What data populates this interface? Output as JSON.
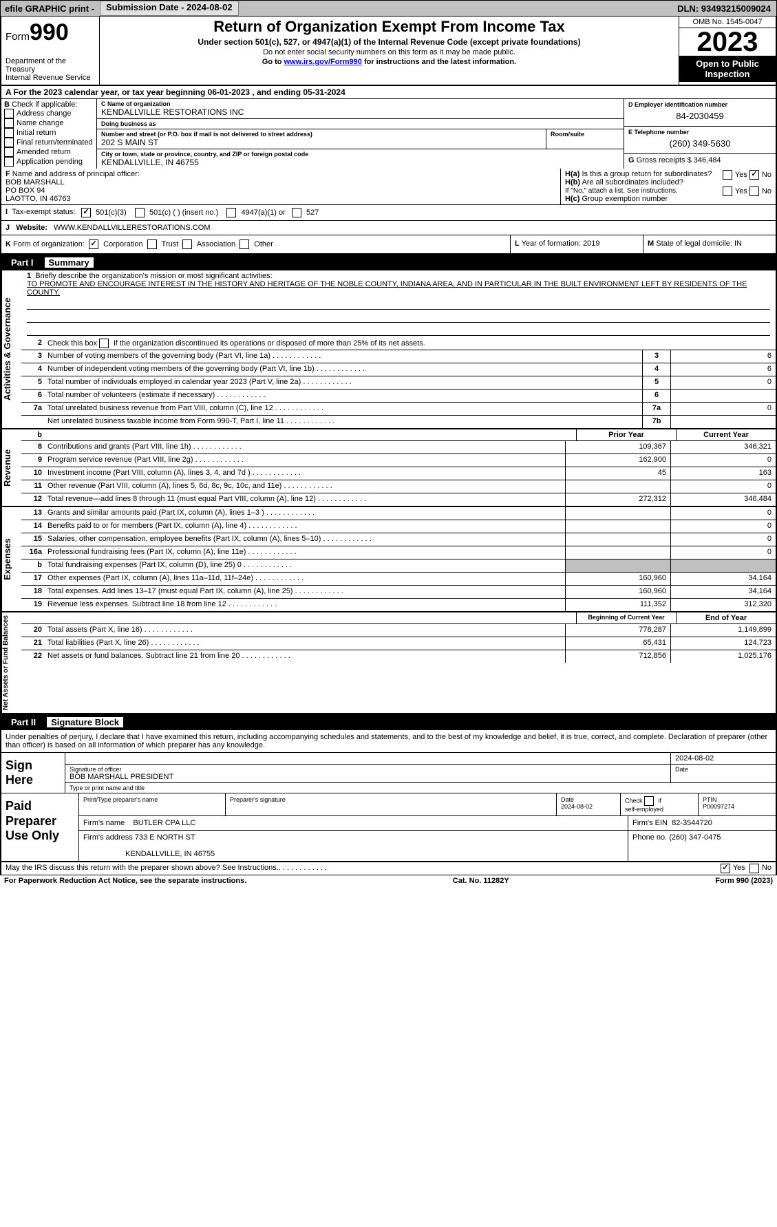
{
  "topbar": {
    "efile": "efile GRAPHIC print -",
    "subdate_label": "Submission Date - ",
    "subdate": "2024-08-02",
    "dln_label": "DLN: ",
    "dln": "93493215009024"
  },
  "header": {
    "form_prefix": "Form",
    "form_no": "990",
    "dept": "Department of the Treasury\nInternal Revenue Service",
    "title": "Return of Organization Exempt From Income Tax",
    "sub": "Under section 501(c), 527, or 4947(a)(1) of the Internal Revenue Code (except private foundations)",
    "notice": "Do not enter social security numbers on this form as it may be made public.",
    "goto_pre": "Go to ",
    "goto_link": "www.irs.gov/Form990",
    "goto_post": " for instructions and the latest information.",
    "omb": "OMB No. 1545-0047",
    "year": "2023",
    "inspect": "Open to Public Inspection"
  },
  "A": {
    "text": "A For the 2023 calendar year, or tax year beginning 06-01-2023    , and ending 05-31-2024"
  },
  "B": {
    "label": "Check if applicable:",
    "items": [
      "Address change",
      "Name change",
      "Initial return",
      "Final return/terminated",
      "Amended return",
      "Application pending"
    ]
  },
  "C": {
    "name_label": "Name of organization",
    "name": "KENDALLVILLE RESTORATIONS INC",
    "dba_label": "Doing business as",
    "dba": "",
    "street_label": "Number and street (or P.O. box if mail is not delivered to street address)",
    "street": "202 S MAIN ST",
    "room_label": "Room/suite",
    "room": "",
    "city_label": "City or town, state or province, country, and ZIP or foreign postal code",
    "city": "KENDALLVILLE, IN  46755"
  },
  "D": {
    "label": "Employer identification number",
    "val": "84-2030459"
  },
  "E": {
    "label": "Telephone number",
    "val": "(260) 349-5630"
  },
  "G": {
    "label": "Gross receipts $",
    "val": "346,484"
  },
  "F": {
    "label": "Name and address of principal officer:",
    "name": "BOB MARSHALL",
    "po": "PO BOX 94",
    "city": "LAOTTO, IN  46763"
  },
  "H": {
    "a": "Is this a group return for subordinates?",
    "a_yes": "Yes",
    "a_no": "No",
    "b": "Are all subordinates included?",
    "b_note": "If \"No,\" attach a list. See instructions.",
    "c": "Group exemption number"
  },
  "I": {
    "label": "Tax-exempt status:",
    "o1": "501(c)(3)",
    "o2": "501(c) (  ) (insert no.)",
    "o3": "4947(a)(1) or",
    "o4": "527"
  },
  "J": {
    "label": "Website:",
    "val": "WWW.KENDALLVILLERESTORATIONS.COM"
  },
  "K": {
    "label": "Form of organization:",
    "o": [
      "Corporation",
      "Trust",
      "Association",
      "Other"
    ]
  },
  "L": {
    "label": "Year of formation:",
    "val": "2019"
  },
  "M": {
    "label": "State of legal domicile:",
    "val": "IN"
  },
  "part1": {
    "num": "Part I",
    "title": "Summary"
  },
  "summary": {
    "sec1_label": "Activities & Governance",
    "sec2_label": "Revenue",
    "sec3_label": "Expenses",
    "sec4_label": "Net Assets or Fund Balances",
    "l1_label": "Briefly describe the organization's mission or most significant activities:",
    "l1_text": "TO PROMOTE AND ENCOURAGE INTEREST IN THE HISTORY AND HERITAGE OF THE NOBLE COUNTY, INDIANA AREA, AND IN PARTICULAR IN THE BUILT ENVIRONMENT LEFT BY RESIDENTS OF THE COUNTY.",
    "l2": "Check this box      if the organization discontinued its operations or disposed of more than 25% of its net assets.",
    "rows_a": [
      {
        "n": "3",
        "t": "Number of voting members of the governing body (Part VI, line 1a)",
        "lbl": "3",
        "v": "6"
      },
      {
        "n": "4",
        "t": "Number of independent voting members of the governing body (Part VI, line 1b)",
        "lbl": "4",
        "v": "6"
      },
      {
        "n": "5",
        "t": "Total number of individuals employed in calendar year 2023 (Part V, line 2a)",
        "lbl": "5",
        "v": "0"
      },
      {
        "n": "6",
        "t": "Total number of volunteers (estimate if necessary)",
        "lbl": "6",
        "v": ""
      },
      {
        "n": "7a",
        "t": "Total unrelated business revenue from Part VIII, column (C), line 12",
        "lbl": "7a",
        "v": "0"
      },
      {
        "n": "",
        "t": "Net unrelated business taxable income from Form 990-T, Part I, line 11",
        "lbl": "7b",
        "v": ""
      }
    ],
    "col_prior": "Prior Year",
    "col_current": "Current Year",
    "rows_rev": [
      {
        "n": "8",
        "t": "Contributions and grants (Part VIII, line 1h)",
        "p": "109,367",
        "c": "346,321"
      },
      {
        "n": "9",
        "t": "Program service revenue (Part VIII, line 2g)",
        "p": "162,900",
        "c": "0"
      },
      {
        "n": "10",
        "t": "Investment income (Part VIII, column (A), lines 3, 4, and 7d )",
        "p": "45",
        "c": "163"
      },
      {
        "n": "11",
        "t": "Other revenue (Part VIII, column (A), lines 5, 6d, 8c, 9c, 10c, and 11e)",
        "p": "",
        "c": "0"
      },
      {
        "n": "12",
        "t": "Total revenue—add lines 8 through 11 (must equal Part VIII, column (A), line 12)",
        "p": "272,312",
        "c": "346,484"
      }
    ],
    "rows_exp": [
      {
        "n": "13",
        "t": "Grants and similar amounts paid (Part IX, column (A), lines 1–3 )",
        "p": "",
        "c": "0"
      },
      {
        "n": "14",
        "t": "Benefits paid to or for members (Part IX, column (A), line 4)",
        "p": "",
        "c": "0"
      },
      {
        "n": "15",
        "t": "Salaries, other compensation, employee benefits (Part IX, column (A), lines 5–10)",
        "p": "",
        "c": "0"
      },
      {
        "n": "16a",
        "t": "Professional fundraising fees (Part IX, column (A), line 11e)",
        "p": "",
        "c": "0"
      },
      {
        "n": "b",
        "t": "Total fundraising expenses (Part IX, column (D), line 25) 0",
        "p": "grey",
        "c": "grey"
      },
      {
        "n": "17",
        "t": "Other expenses (Part IX, column (A), lines 11a–11d, 11f–24e)",
        "p": "160,960",
        "c": "34,164"
      },
      {
        "n": "18",
        "t": "Total expenses. Add lines 13–17 (must equal Part IX, column (A), line 25)",
        "p": "160,960",
        "c": "34,164"
      },
      {
        "n": "19",
        "t": "Revenue less expenses. Subtract line 18 from line 12",
        "p": "111,352",
        "c": "312,320"
      }
    ],
    "col_begin": "Beginning of Current Year",
    "col_end": "End of Year",
    "rows_net": [
      {
        "n": "20",
        "t": "Total assets (Part X, line 16)",
        "p": "778,287",
        "c": "1,149,899"
      },
      {
        "n": "21",
        "t": "Total liabilities (Part X, line 26)",
        "p": "65,431",
        "c": "124,723"
      },
      {
        "n": "22",
        "t": "Net assets or fund balances. Subtract line 21 from line 20",
        "p": "712,856",
        "c": "1,025,176"
      }
    ]
  },
  "part2": {
    "num": "Part II",
    "title": "Signature Block"
  },
  "sig": {
    "declare": "Under penalties of perjury, I declare that I have examined this return, including accompanying schedules and statements, and to the best of my knowledge and belief, it is true, correct, and complete. Declaration of preparer (other than officer) is based on all information of which preparer has any knowledge.",
    "sign_here": "Sign Here",
    "sig_of_officer": "Signature of officer",
    "date": "Date",
    "date_val": "2024-08-02",
    "officer_name": "BOB MARSHALL  PRESIDENT",
    "type_label": "Type or print name and title",
    "paid": "Paid Preparer Use Only",
    "prep_name_label": "Print/Type preparer's name",
    "prep_sig_label": "Preparer's signature",
    "prep_date": "2024-08-02",
    "check_if": "Check       if self-employed",
    "ptin_label": "PTIN",
    "ptin": "P00097274",
    "firm_name_label": "Firm's name",
    "firm_name": "BUTLER CPA LLC",
    "firm_ein_label": "Firm's EIN",
    "firm_ein": "82-3544720",
    "firm_addr_label": "Firm's address",
    "firm_addr": "733 E NORTH ST",
    "firm_city": "KENDALLVILLE, IN  46755",
    "phone_label": "Phone no.",
    "phone": "(260) 347-0475",
    "discuss": "May the IRS discuss this return with the preparer shown above? See Instructions.",
    "yes": "Yes",
    "no": "No"
  },
  "footer": {
    "left": "For Paperwork Reduction Act Notice, see the separate instructions.",
    "cat": "Cat. No. 11282Y",
    "right": "Form 990 (2023)"
  }
}
